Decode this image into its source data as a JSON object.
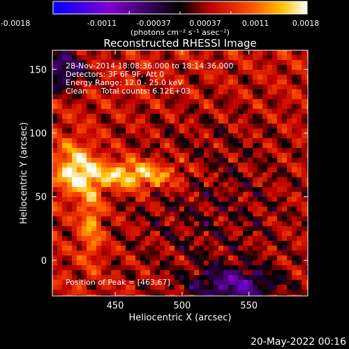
{
  "colorbar": {
    "ticks": [
      "-0.0018",
      "-0.0011",
      "-0.00037",
      "0.00037",
      "0.0011",
      "0.0018"
    ],
    "units": "(photons cm⁻² s⁻¹ asec⁻²)",
    "range": [
      -0.0018,
      0.0018
    ]
  },
  "annotations": {
    "line1": "28-Nov-2014 18:08:36.000 to 18:14:36.000",
    "line2": "Detectors: 3F 6F 9F, Att 0",
    "line3": "Energy Range: 12.0 - 25.0 keV",
    "line4_left": "Clean",
    "line4_right": "Total counts: 6.12E+03",
    "peak": "Position of Peak = [463,67]"
  },
  "footer": {
    "date": "20-May-2022 00:16"
  },
  "chart_data": {
    "type": "heatmap",
    "title": "Reconstructed RHESSI Image",
    "xlabel": "Heliocentric X (arcsec)",
    "ylabel": "Heliocentric Y (arcsec)",
    "xlim": [
      403,
      594
    ],
    "ylim": [
      -28,
      165
    ],
    "xticks": [
      450,
      500,
      550
    ],
    "yticks": [
      0,
      50,
      100,
      150
    ],
    "peak": [
      463,
      67
    ],
    "colors": [
      "#0000ff",
      "#8000d8",
      "#000000",
      "#c00000",
      "#ff5000",
      "#ffc000",
      "#ffffff"
    ]
  }
}
